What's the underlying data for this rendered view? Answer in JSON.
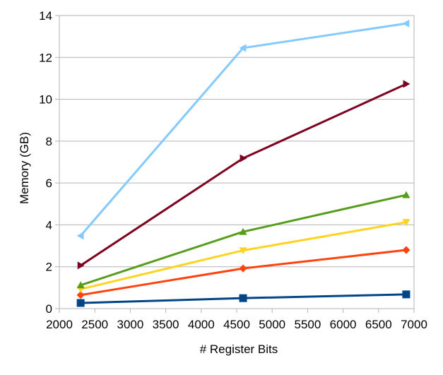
{
  "chart_data": {
    "type": "line",
    "title": "",
    "xlabel": "# Register Bits",
    "ylabel": "Memory (GB)",
    "xlim": [
      2000,
      7000
    ],
    "ylim": [
      0,
      14
    ],
    "x_ticks": [
      2000,
      2500,
      3000,
      3500,
      4000,
      4500,
      5000,
      5500,
      6000,
      6500,
      7000
    ],
    "y_ticks": [
      0,
      2,
      4,
      6,
      8,
      10,
      12,
      14
    ],
    "grid": "horizontal",
    "legend": "none",
    "x": [
      2300,
      4590,
      6890
    ],
    "series": [
      {
        "values": [
          0.27,
          0.5,
          0.68
        ],
        "color": "#004586",
        "marker": "square"
      },
      {
        "values": [
          0.65,
          1.92,
          2.8
        ],
        "color": "#FF420E",
        "marker": "diamond"
      },
      {
        "values": [
          0.93,
          2.78,
          4.13
        ],
        "color": "#FFD320",
        "marker": "triangle-down"
      },
      {
        "values": [
          1.12,
          3.67,
          5.43
        ],
        "color": "#579D1C",
        "marker": "triangle-up"
      },
      {
        "values": [
          2.06,
          7.18,
          10.73
        ],
        "color": "#7E0021",
        "marker": "triangle-right"
      },
      {
        "values": [
          3.48,
          12.45,
          13.62
        ],
        "color": "#83CAFF",
        "marker": "triangle-left"
      }
    ]
  }
}
